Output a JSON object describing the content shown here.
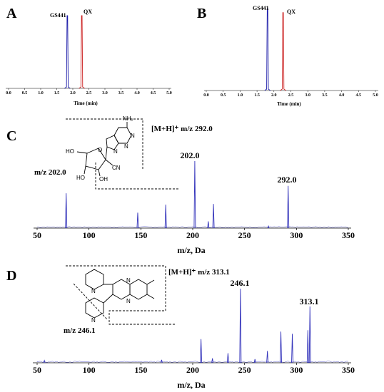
{
  "panels": {
    "A": "A",
    "B": "B",
    "C": "C",
    "D": "D"
  },
  "chart_data": [
    {
      "id": "A",
      "type": "line",
      "xlabel": "Time (min)",
      "xlim": [
        0.0,
        5.0
      ],
      "xticks": [
        "0.0",
        "0.5",
        "1.0",
        "1.5",
        "2.0",
        "2.5",
        "3.0",
        "3.5",
        "4.0",
        "4.5",
        "5.0"
      ],
      "series": [
        {
          "name": "GS441",
          "color": "#1a1aa8",
          "peak_x": 1.83,
          "peak_rel": 1.0
        },
        {
          "name": "QX",
          "color": "#cc2222",
          "peak_x": 2.28,
          "peak_rel": 1.0
        }
      ]
    },
    {
      "id": "B",
      "type": "line",
      "xlabel": "Time (min)",
      "xlim": [
        0.0,
        5.0
      ],
      "xticks": [
        "0.0",
        "0.5",
        "1.0",
        "1.5",
        "2.0",
        "2.5",
        "3.0",
        "3.5",
        "4.0",
        "4.5",
        "5.0"
      ],
      "series": [
        {
          "name": "GS441",
          "color": "#1a1aa8",
          "peak_x": 1.81,
          "peak_rel": 1.0
        },
        {
          "name": "QX",
          "color": "#cc2222",
          "peak_x": 2.27,
          "peak_rel": 0.95
        }
      ]
    },
    {
      "id": "C",
      "type": "bar",
      "xlabel": "m/z, Da",
      "xlim": [
        50,
        350
      ],
      "xticks": [
        "50",
        "100",
        "150",
        "200",
        "250",
        "300",
        "350"
      ],
      "precursor_label": "[M+H]⁺ m/z 292.0",
      "fragment_label": "m/z 202.0",
      "atom_labels": {
        "nh2": "NH₂",
        "ho": "HO",
        "oh1": "HO",
        "oh2": "OH",
        "cn": "CN",
        "n1": "N",
        "n2": "N",
        "n3": "N",
        "o": "O"
      },
      "peak_labels": [
        "202.0",
        "292.0"
      ],
      "color": "#3333bb",
      "peaks": [
        {
          "mz": 78,
          "rel": 0.52
        },
        {
          "mz": 147,
          "rel": 0.23
        },
        {
          "mz": 174,
          "rel": 0.35
        },
        {
          "mz": 202,
          "rel": 1.0
        },
        {
          "mz": 215,
          "rel": 0.1
        },
        {
          "mz": 220,
          "rel": 0.36
        },
        {
          "mz": 273,
          "rel": 0.03
        },
        {
          "mz": 292,
          "rel": 0.63
        }
      ]
    },
    {
      "id": "D",
      "type": "bar",
      "xlabel": "m/z, Da",
      "xlim": [
        50,
        350
      ],
      "xticks": [
        "50",
        "100",
        "150",
        "200",
        "250",
        "300",
        "350"
      ],
      "precursor_label": "[M+H]⁺ m/z 313.1",
      "fragment_label": "m/z 246.1",
      "atom_labels": {
        "n1": "N",
        "n2": "N",
        "n3": "N",
        "n4": "N"
      },
      "peak_labels": [
        "246.1",
        "313.1"
      ],
      "color": "#3333bb",
      "peaks": [
        {
          "mz": 57,
          "rel": 0.03
        },
        {
          "mz": 170,
          "rel": 0.04
        },
        {
          "mz": 208,
          "rel": 0.32
        },
        {
          "mz": 219,
          "rel": 0.06
        },
        {
          "mz": 234,
          "rel": 0.13
        },
        {
          "mz": 246,
          "rel": 1.0
        },
        {
          "mz": 260,
          "rel": 0.05
        },
        {
          "mz": 272,
          "rel": 0.16
        },
        {
          "mz": 285,
          "rel": 0.42
        },
        {
          "mz": 296,
          "rel": 0.39
        },
        {
          "mz": 311,
          "rel": 0.44
        },
        {
          "mz": 313,
          "rel": 0.76
        }
      ]
    }
  ]
}
